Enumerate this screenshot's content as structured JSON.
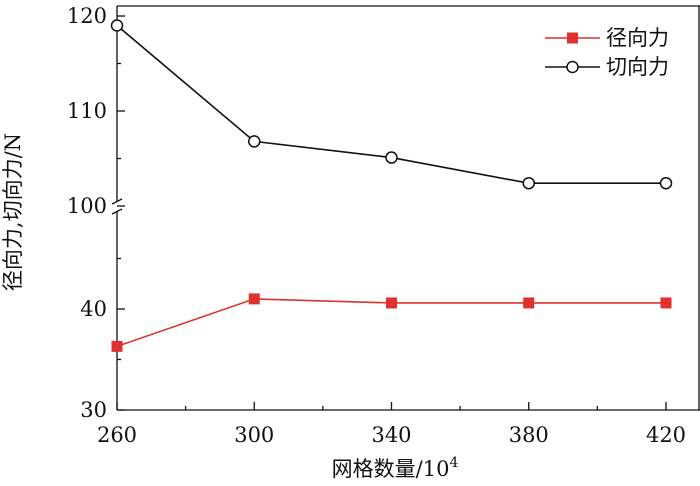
{
  "chart_data": {
    "type": "line",
    "xlabel": "网格数量/10",
    "xlabel_sup": "4",
    "ylabel": "径向力,切向力/N",
    "x": [
      260,
      300,
      340,
      380,
      420
    ],
    "x_ticks": [
      "260",
      "300",
      "340",
      "380",
      "420"
    ],
    "xlim": [
      260,
      420
    ],
    "y_axis_broken": true,
    "y_segments": [
      {
        "range": [
          30,
          50
        ],
        "ticks": [
          "30",
          "40"
        ]
      },
      {
        "range": [
          100,
          120
        ],
        "ticks": [
          "100",
          "110",
          "120"
        ]
      }
    ],
    "series": [
      {
        "name": "径向力",
        "color": "#e03131",
        "marker": "filled-square",
        "values": [
          36.3,
          41.0,
          40.6,
          40.6,
          40.6
        ]
      },
      {
        "name": "切向力",
        "color": "#111111",
        "marker": "open-circle",
        "values": [
          119.0,
          106.8,
          105.1,
          102.4,
          102.4
        ]
      }
    ],
    "legend_position": "top-right",
    "grid": false
  }
}
